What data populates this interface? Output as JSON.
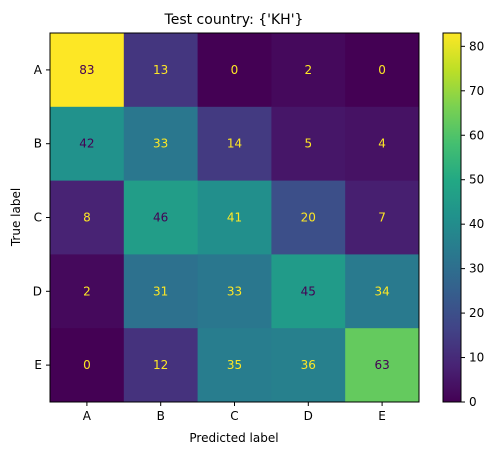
{
  "chart_data": {
    "type": "heatmap",
    "title": "Test country: {'KH'}",
    "xlabel": "Predicted label",
    "ylabel": "True label",
    "x_categories": [
      "A",
      "B",
      "C",
      "D",
      "E"
    ],
    "y_categories": [
      "A",
      "B",
      "C",
      "D",
      "E"
    ],
    "matrix": [
      [
        83,
        13,
        0,
        2,
        0
      ],
      [
        42,
        33,
        14,
        5,
        4
      ],
      [
        8,
        46,
        41,
        20,
        7
      ],
      [
        2,
        31,
        33,
        45,
        34
      ],
      [
        0,
        12,
        35,
        36,
        63
      ]
    ],
    "colormap": "viridis",
    "vmin": 0,
    "vmax": 83,
    "colorbar_ticks": [
      0,
      10,
      20,
      30,
      40,
      50,
      60,
      70,
      80
    ],
    "text_colors": {
      "light_cell": "#440154",
      "dark_cell": "#fde725"
    }
  }
}
